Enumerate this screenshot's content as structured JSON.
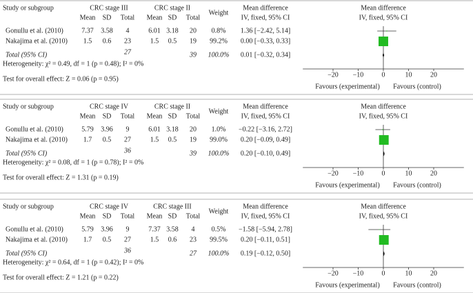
{
  "chart_data": [
    {
      "type": "forest",
      "study_header": "Study or subgroup",
      "group1": "CRC stage III",
      "group2": "CRC stage II",
      "columns": [
        "Mean",
        "SD",
        "Total",
        "Mean",
        "SD",
        "Total"
      ],
      "weight_header": "Weight",
      "md_title": "Mean difference",
      "md_sub": "IV, fixed, 95% CI",
      "plot_title": "Mean difference",
      "plot_sub": "IV, fixed, 95% CI",
      "studies": [
        {
          "name": "Gonullu et al. (2010)",
          "group1_stats": [
            7.37,
            3.58,
            4
          ],
          "group2_stats": [
            6.01,
            3.18,
            20
          ],
          "weight": 0.8,
          "weight_label": "0.8%",
          "md": 1.36,
          "lo": -2.42,
          "hi": 5.14,
          "ci_label": "1.36 [−2.42, 5.14]"
        },
        {
          "name": "Nakajima et al. (2010)",
          "group1_stats": [
            1.5,
            0.6,
            23
          ],
          "group2_stats": [
            1.5,
            0.5,
            19
          ],
          "weight": 99.2,
          "weight_label": "99.2%",
          "md": 0.0,
          "lo": -0.33,
          "hi": 0.33,
          "ci_label": "0.00 [−0.33, 0.33]"
        }
      ],
      "total": {
        "name": "Total (95% CI)",
        "n1": 27,
        "n2": 39,
        "weight": 100,
        "weight_label": "100.0%",
        "md": 0.01,
        "lo": -0.32,
        "hi": 0.34,
        "ci_label": "0.01 [−0.32, 0.34]"
      },
      "heterogeneity": "Heterogeneity: χ² = 0.49, df = 1 (p = 0.48); I² = 0%",
      "overall": "Test for overall effect: Z = 0.06 (p = 0.95)",
      "xlim": [
        -32,
        32
      ],
      "xticks": [
        {
          "value": -20,
          "label": "−20"
        },
        {
          "value": -10,
          "label": "−10"
        },
        0,
        10,
        20
      ],
      "favours": [
        "Favours (experimental)",
        "Favours (control)"
      ],
      "color": "#22bb22"
    },
    {
      "type": "forest",
      "study_header": "Study or subgroup",
      "group1": "CRC stage IV",
      "group2": "CRC stage II",
      "columns": [
        "Mean",
        "SD",
        "Total",
        "Mean",
        "SD",
        "Total"
      ],
      "weight_header": "Weight",
      "md_title": "Mean difference",
      "md_sub": "IV, fixed, 95% CI",
      "plot_title": "Mean difference",
      "plot_sub": "IV, fixed, 95% CI",
      "studies": [
        {
          "name": "Gonullu et al. (2010)",
          "group1_stats": [
            5.79,
            3.96,
            9
          ],
          "group2_stats": [
            6.01,
            3.18,
            20
          ],
          "weight": 1.0,
          "weight_label": "1.0%",
          "md": -0.22,
          "lo": -3.16,
          "hi": 2.72,
          "ci_label": "−0.22 [−3.16, 2.72]"
        },
        {
          "name": "Nakajima et al. (2010)",
          "group1_stats": [
            1.7,
            0.5,
            27
          ],
          "group2_stats": [
            1.5,
            0.5,
            19
          ],
          "weight": 99.0,
          "weight_label": "99.0%",
          "md": 0.2,
          "lo": -0.09,
          "hi": 0.49,
          "ci_label": "0.20 [−0.09, 0.49]"
        }
      ],
      "total": {
        "name": "Total (95% CI)",
        "n1": 36,
        "n2": 39,
        "weight": 100,
        "weight_label": "100.0%",
        "md": 0.2,
        "lo": -0.1,
        "hi": 0.49,
        "ci_label": "0.20 [−0.10, 0.49]"
      },
      "heterogeneity": "Heterogeneity: χ² = 0.08, df = 1 (p = 0.78); I² = 0%",
      "overall": "Test for overall effect: Z = 1.31 (p = 0.19)",
      "xlim": [
        -32,
        32
      ],
      "xticks": [
        {
          "value": -20,
          "label": "−20"
        },
        {
          "value": -10,
          "label": "−10"
        },
        0,
        10,
        20
      ],
      "favours": [
        "Favours (experimental)",
        "Favours (control)"
      ],
      "color": "#22bb22"
    },
    {
      "type": "forest",
      "study_header": "Study or subgroup",
      "group1": "CRC stage IV",
      "group2": "CRC stage III",
      "columns": [
        "Mean",
        "SD",
        "Total",
        "Mean",
        "SD",
        "Total"
      ],
      "weight_header": "Weight",
      "md_title": "Mean difference",
      "md_sub": "IV, fixed, 95% CI",
      "plot_title": "Mean difference",
      "plot_sub": "IV, fixed, 95% CI",
      "studies": [
        {
          "name": "Gonullu et al. (2010)",
          "group1_stats": [
            5.79,
            3.96,
            9
          ],
          "group2_stats": [
            7.37,
            3.58,
            4
          ],
          "weight": 0.5,
          "weight_label": "0.5%",
          "md": -1.58,
          "lo": -5.94,
          "hi": 2.78,
          "ci_label": "−1.58 [−5.94, 2.78]"
        },
        {
          "name": "Nakajima et al. (2010)",
          "group1_stats": [
            1.7,
            0.5,
            27
          ],
          "group2_stats": [
            1.5,
            0.6,
            23
          ],
          "weight": 99.5,
          "weight_label": "99.5%",
          "md": 0.2,
          "lo": -0.11,
          "hi": 0.51,
          "ci_label": "0.20 [−0.11, 0.51]"
        }
      ],
      "total": {
        "name": "Total (95% CI)",
        "n1": 36,
        "n2": 27,
        "weight": 100,
        "weight_label": "100.0%",
        "md": 0.19,
        "lo": -0.12,
        "hi": 0.5,
        "ci_label": "0.19 [−0.12, 0.50]"
      },
      "heterogeneity": "Heterogeneity: χ² = 0.64, df = 1 (p = 0.42); I² = 0%",
      "overall": "Test for overall effect: Z = 1.21 (p = 0.22)",
      "xlim": [
        -32,
        32
      ],
      "xticks": [
        {
          "value": -20,
          "label": "−20"
        },
        {
          "value": -10,
          "label": "−10"
        },
        0,
        10,
        20
      ],
      "favours": [
        "Favours (experimental)",
        "Favours (control)"
      ],
      "color": "#22bb22"
    }
  ]
}
